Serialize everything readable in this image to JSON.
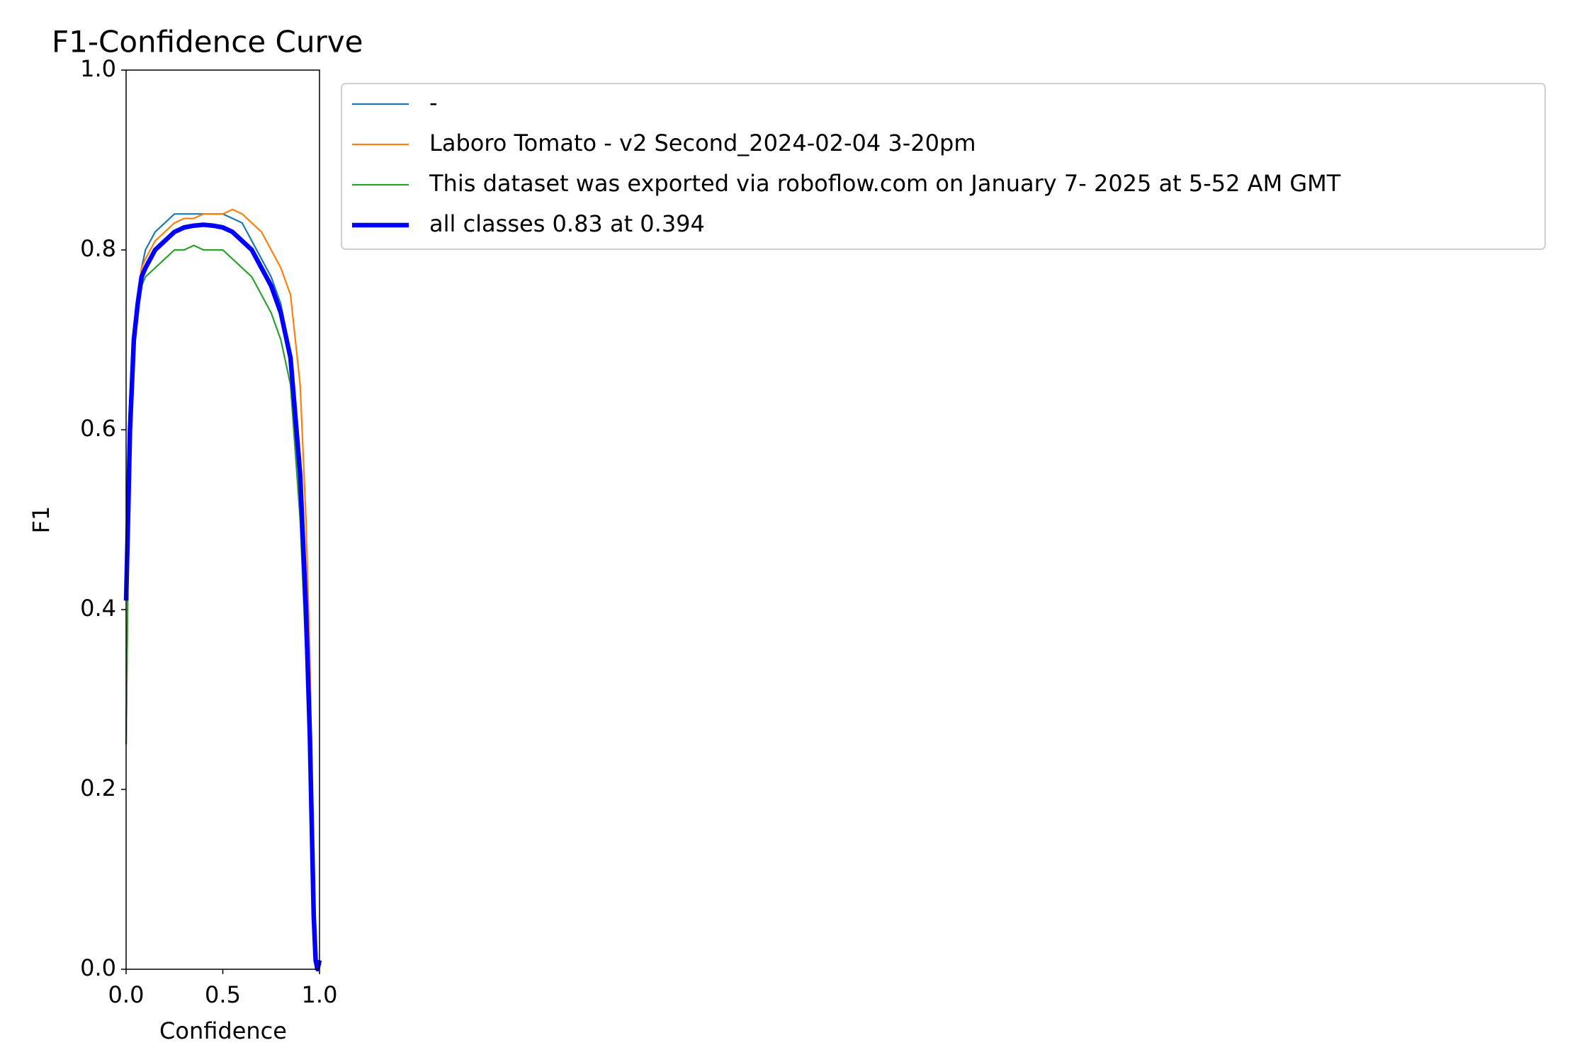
{
  "chart_data": {
    "type": "line",
    "title": "F1-Confidence Curve",
    "x_label": "Confidence",
    "y_label": "F1",
    "x": [
      0,
      0.01,
      0.02,
      0.04,
      0.06,
      0.08,
      0.1,
      0.15,
      0.2,
      0.25,
      0.3,
      0.35,
      0.4,
      0.45,
      0.5,
      0.55,
      0.6,
      0.65,
      0.7,
      0.75,
      0.8,
      0.85,
      0.9,
      0.93,
      0.95,
      0.97,
      0.98,
      0.99,
      1.0
    ],
    "series": [
      {
        "name": "-",
        "color": "#1f77b4",
        "width": 2.2,
        "values": [
          0.25,
          0.45,
          0.58,
          0.7,
          0.75,
          0.78,
          0.8,
          0.82,
          0.83,
          0.84,
          0.84,
          0.84,
          0.84,
          0.84,
          0.84,
          0.835,
          0.83,
          0.81,
          0.79,
          0.77,
          0.74,
          0.68,
          0.55,
          0.4,
          0.25,
          0.05,
          0.0,
          0.0,
          0.0
        ]
      },
      {
        "name": "Laboro Tomato - v2 Second_2024-02-04 3-20pm",
        "color": "#ff7f0e",
        "width": 2.2,
        "values": [
          0.25,
          0.45,
          0.58,
          0.7,
          0.75,
          0.78,
          0.79,
          0.81,
          0.82,
          0.83,
          0.835,
          0.835,
          0.84,
          0.84,
          0.84,
          0.845,
          0.84,
          0.83,
          0.82,
          0.8,
          0.78,
          0.75,
          0.65,
          0.5,
          0.35,
          0.1,
          0.02,
          0.0,
          0.0
        ]
      },
      {
        "name": "This dataset was exported via roboflow.com on January 7- 2025 at 5-52 AM GMT",
        "color": "#2ca02c",
        "width": 2.2,
        "values": [
          0.25,
          0.45,
          0.58,
          0.7,
          0.74,
          0.76,
          0.77,
          0.78,
          0.79,
          0.8,
          0.8,
          0.805,
          0.8,
          0.8,
          0.8,
          0.79,
          0.78,
          0.77,
          0.75,
          0.73,
          0.7,
          0.65,
          0.5,
          0.35,
          0.22,
          0.04,
          0.0,
          0.0,
          0.0
        ]
      },
      {
        "name": "all classes 0.83 at 0.394",
        "color": "#0000ff",
        "width": 6.5,
        "values": [
          0.41,
          0.5,
          0.6,
          0.7,
          0.74,
          0.77,
          0.78,
          0.8,
          0.81,
          0.82,
          0.825,
          0.827,
          0.828,
          0.827,
          0.825,
          0.82,
          0.81,
          0.8,
          0.78,
          0.76,
          0.73,
          0.68,
          0.55,
          0.4,
          0.26,
          0.06,
          0.01,
          0.0,
          0.01
        ]
      }
    ],
    "xlim": [
      0,
      1
    ],
    "ylim": [
      0,
      1
    ],
    "xticks": [
      {
        "value": 0,
        "label": "0.0"
      },
      {
        "value": 0.5,
        "label": "0.5"
      },
      {
        "value": 1,
        "label": "1.0"
      }
    ],
    "yticks": [
      {
        "value": 0,
        "label": "0.0"
      },
      {
        "value": 0.2,
        "label": "0.2"
      },
      {
        "value": 0.4,
        "label": "0.4"
      },
      {
        "value": 0.6,
        "label": "0.6"
      },
      {
        "value": 0.8,
        "label": "0.8"
      },
      {
        "value": 1,
        "label": "1.0"
      }
    ],
    "grid": false
  }
}
